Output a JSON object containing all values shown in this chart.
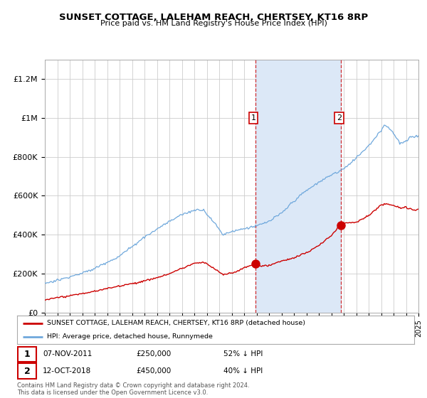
{
  "title": "SUNSET COTTAGE, LALEHAM REACH, CHERTSEY, KT16 8RP",
  "subtitle": "Price paid vs. HM Land Registry's House Price Index (HPI)",
  "ylim": [
    0,
    1300000
  ],
  "yticks": [
    0,
    200000,
    400000,
    600000,
    800000,
    1000000,
    1200000
  ],
  "ytick_labels": [
    "£0",
    "£200K",
    "£400K",
    "£600K",
    "£800K",
    "£1M",
    "£1.2M"
  ],
  "hpi_color": "#6fa8dc",
  "price_color": "#cc0000",
  "shaded_color": "#dce8f7",
  "sale1_year": 2011.9,
  "sale1_price": 250000,
  "sale1_pct": "52%",
  "sale1_date": "07-NOV-2011",
  "sale2_year": 2018.79,
  "sale2_price": 450000,
  "sale2_pct": "40%",
  "sale2_date": "12-OCT-2018",
  "legend_label1": "SUNSET COTTAGE, LALEHAM REACH, CHERTSEY, KT16 8RP (detached house)",
  "legend_label2": "HPI: Average price, detached house, Runnymede",
  "footnote": "Contains HM Land Registry data © Crown copyright and database right 2024.\nThis data is licensed under the Open Government Licence v3.0.",
  "xmin": 1995,
  "xmax": 2025
}
